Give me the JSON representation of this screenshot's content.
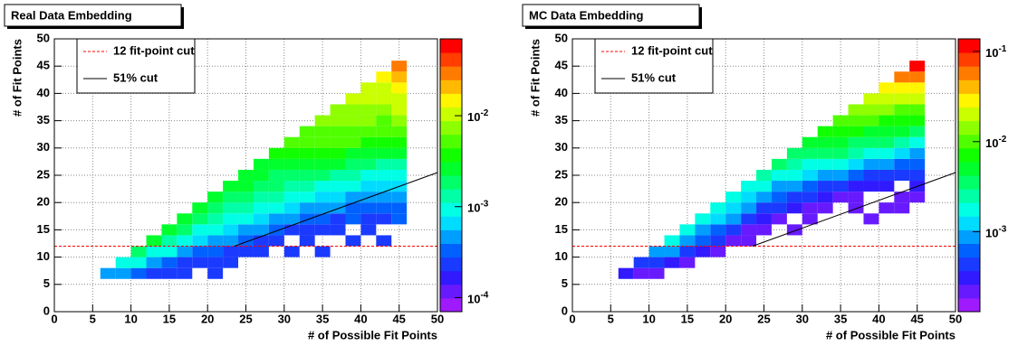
{
  "chart_data": [
    {
      "type": "heatmap",
      "title": "Real Data Embedding",
      "xlabel": "# of Possible Fit Points",
      "ylabel": "# of Fit Points",
      "xlim": [
        0,
        50
      ],
      "ylim": [
        0,
        50
      ],
      "xticks": [
        0,
        5,
        10,
        15,
        20,
        25,
        30,
        35,
        40,
        45,
        50
      ],
      "yticks": [
        0,
        5,
        10,
        15,
        20,
        25,
        30,
        35,
        40,
        45,
        50
      ],
      "grid": true,
      "xbins": [
        6,
        8,
        10,
        12,
        14,
        16,
        18,
        20,
        22,
        24,
        26,
        28,
        30,
        32,
        34,
        36,
        38,
        40,
        42,
        44,
        46
      ],
      "ybins": [
        6,
        8,
        10,
        12,
        14,
        16,
        18,
        20,
        22,
        24,
        26,
        28,
        30,
        32,
        34,
        36,
        38,
        40,
        42,
        44,
        46
      ],
      "z": [
        [
          0.0005
        ],
        [
          0.0004,
          0.001
        ],
        [
          0.0003,
          0.0008,
          0.002
        ],
        [
          0.0002,
          0.0005,
          0.001,
          0.003
        ],
        [
          0.0002,
          0.0003,
          0.0008,
          0.0015,
          0.003
        ],
        [
          0.0002,
          0.0002,
          0.0005,
          0.001,
          0.002,
          0.003
        ],
        [
          null,
          0.0002,
          0.0003,
          0.0006,
          0.001,
          0.002,
          0.003
        ],
        [
          0.0002,
          0.0002,
          0.0003,
          0.0005,
          0.0008,
          0.0015,
          0.002,
          0.003
        ],
        [
          null,
          0.0002,
          0.0002,
          0.0004,
          0.0006,
          0.001,
          0.0015,
          0.002,
          0.003
        ],
        [
          null,
          null,
          0.0002,
          0.0003,
          0.0005,
          0.0008,
          0.0012,
          0.0018,
          0.0025,
          0.003
        ],
        [
          null,
          null,
          0.0002,
          0.0002,
          0.0004,
          0.0006,
          0.001,
          0.0015,
          0.002,
          0.0025,
          0.003
        ],
        [
          null,
          null,
          null,
          0.0002,
          0.0003,
          0.0005,
          0.0008,
          0.0012,
          0.0018,
          0.0022,
          0.003,
          0.004
        ],
        [
          null,
          null,
          0.0002,
          null,
          0.0002,
          0.0004,
          0.0006,
          0.001,
          0.0015,
          0.002,
          0.003,
          0.004,
          0.005
        ],
        [
          null,
          null,
          null,
          0.0002,
          0.0002,
          0.0003,
          0.0005,
          0.0008,
          0.0012,
          0.002,
          0.003,
          0.004,
          0.005,
          0.006
        ],
        [
          null,
          null,
          0.0002,
          null,
          0.0002,
          0.0003,
          0.0004,
          0.0007,
          0.001,
          0.0018,
          0.0025,
          0.004,
          0.005,
          0.006,
          0.007
        ],
        [
          null,
          null,
          null,
          null,
          0.0002,
          0.0002,
          0.0004,
          0.0006,
          0.001,
          0.0015,
          0.0025,
          0.0035,
          0.005,
          0.006,
          0.007,
          0.008
        ],
        [
          null,
          null,
          null,
          0.0002,
          null,
          0.0003,
          0.0003,
          0.0005,
          0.0008,
          0.0012,
          0.002,
          0.003,
          0.0045,
          0.006,
          0.007,
          0.008,
          0.009
        ],
        [
          null,
          null,
          null,
          null,
          0.0002,
          0.0002,
          0.0003,
          0.0005,
          0.0007,
          0.001,
          0.0018,
          0.0028,
          0.004,
          0.0055,
          0.007,
          0.008,
          0.01,
          0.012
        ],
        [
          null,
          null,
          null,
          0.0002,
          null,
          0.0002,
          0.0003,
          0.0004,
          0.0006,
          0.001,
          0.0015,
          0.0025,
          0.004,
          0.005,
          0.006,
          0.008,
          0.01,
          0.012,
          0.015
        ],
        [
          null,
          null,
          null,
          null,
          null,
          0.0003,
          0.0003,
          0.0004,
          0.0006,
          0.001,
          0.0015,
          0.0025,
          0.004,
          0.006,
          0.008,
          0.01,
          0.012,
          0.015,
          0.02,
          0.025
        ]
      ],
      "zlim": [
        7e-05,
        0.07
      ],
      "zlog": true,
      "zticks": [
        {
          "value": 0.0001,
          "base": "10",
          "exp": "-4"
        },
        {
          "value": 0.001,
          "base": "10",
          "exp": "-3"
        },
        {
          "value": 0.01,
          "base": "10",
          "exp": "-2"
        }
      ],
      "lines": [
        {
          "name": "12 fit-point cut",
          "color": "#ff0000",
          "dashed": true,
          "x": [
            0,
            50
          ],
          "y": [
            12,
            12
          ]
        },
        {
          "name": "51% cut",
          "color": "#000000",
          "dashed": false,
          "x": [
            23.5,
            50
          ],
          "y": [
            12,
            25.5
          ]
        }
      ]
    },
    {
      "type": "heatmap",
      "title": "MC Data Embedding",
      "xlabel": "# of Possible Fit Points",
      "ylabel": "# of Fit Points",
      "xlim": [
        0,
        50
      ],
      "ylim": [
        0,
        50
      ],
      "xticks": [
        0,
        5,
        10,
        15,
        20,
        25,
        30,
        35,
        40,
        45,
        50
      ],
      "yticks": [
        0,
        5,
        10,
        15,
        20,
        25,
        30,
        35,
        40,
        45,
        50
      ],
      "grid": true,
      "xbins": [
        6,
        8,
        10,
        12,
        14,
        16,
        18,
        20,
        22,
        24,
        26,
        28,
        30,
        32,
        34,
        36,
        38,
        40,
        42,
        44,
        46
      ],
      "ybins": [
        6,
        8,
        10,
        12,
        14,
        16,
        18,
        20,
        22,
        24,
        26,
        28,
        30,
        32,
        34,
        36,
        38,
        40,
        42,
        44,
        46
      ],
      "z": [
        [
          0.0003
        ],
        [
          0.0002,
          0.0005
        ],
        [
          0.0002,
          0.0004,
          0.001
        ],
        [
          null,
          0.0003,
          0.0008,
          0.002
        ],
        [
          null,
          0.0002,
          0.0005,
          0.001,
          0.002
        ],
        [
          null,
          null,
          0.0003,
          0.0006,
          0.001,
          0.002
        ],
        [
          null,
          null,
          0.0002,
          0.0004,
          0.0007,
          0.0012,
          0.002
        ],
        [
          null,
          null,
          null,
          0.0002,
          0.0004,
          0.0008,
          0.0012,
          0.002
        ],
        [
          null,
          null,
          null,
          0.0002,
          0.0002,
          0.0005,
          0.0008,
          0.0012,
          0.002
        ],
        [
          null,
          null,
          null,
          null,
          0.0002,
          0.0003,
          0.0005,
          0.0008,
          0.0015,
          0.0025
        ],
        [
          null,
          null,
          null,
          null,
          null,
          0.0002,
          0.0004,
          0.0006,
          0.001,
          0.0018,
          0.003
        ],
        [
          null,
          null,
          null,
          null,
          0.0002,
          null,
          0.0003,
          0.0005,
          0.0008,
          0.0015,
          0.0025,
          0.004
        ],
        [
          null,
          null,
          null,
          null,
          null,
          0.0002,
          0.0002,
          0.0004,
          0.0007,
          0.0012,
          0.002,
          0.0035,
          0.005
        ],
        [
          null,
          null,
          null,
          null,
          null,
          null,
          0.0002,
          0.0003,
          0.0005,
          0.001,
          0.002,
          0.003,
          0.005,
          0.007
        ],
        [
          null,
          null,
          null,
          null,
          null,
          null,
          null,
          0.0002,
          0.0004,
          0.0008,
          0.0015,
          0.003,
          0.005,
          0.007,
          0.01
        ],
        [
          null,
          null,
          null,
          null,
          null,
          null,
          0.0002,
          0.0002,
          0.0003,
          0.0006,
          0.0012,
          0.0025,
          0.004,
          0.007,
          0.01,
          0.013
        ],
        [
          null,
          null,
          null,
          null,
          null,
          0.0002,
          null,
          null,
          0.0003,
          0.0005,
          0.001,
          0.002,
          0.004,
          0.006,
          0.01,
          0.015,
          0.02
        ],
        [
          null,
          null,
          null,
          null,
          null,
          null,
          0.0002,
          null,
          0.0003,
          0.0004,
          0.0008,
          0.0015,
          0.003,
          0.005,
          0.008,
          0.015,
          0.02,
          0.03
        ],
        [
          null,
          null,
          null,
          null,
          null,
          null,
          0.0002,
          0.0002,
          null,
          0.0004,
          0.0007,
          0.0012,
          0.0025,
          0.005,
          0.008,
          0.012,
          0.02,
          0.03,
          0.05
        ],
        [
          null,
          null,
          null,
          null,
          null,
          null,
          null,
          0.0002,
          0.0003,
          0.0004,
          0.0006,
          0.001,
          0.002,
          0.004,
          0.007,
          0.012,
          0.02,
          0.03,
          0.05,
          0.1
        ]
      ],
      "zlim": [
        0.00013,
        0.138
      ],
      "zlog": true,
      "zticks": [
        {
          "value": 0.001,
          "base": "10",
          "exp": "-3"
        },
        {
          "value": 0.01,
          "base": "10",
          "exp": "-2"
        },
        {
          "value": 0.1,
          "base": "10",
          "exp": "-1"
        }
      ],
      "lines": [
        {
          "name": "12 fit-point cut",
          "color": "#ff0000",
          "dashed": true,
          "x": [
            0,
            50
          ],
          "y": [
            12,
            12
          ]
        },
        {
          "name": "51% cut",
          "color": "#000000",
          "dashed": false,
          "x": [
            23.5,
            50
          ],
          "y": [
            12,
            25.5
          ]
        }
      ]
    }
  ]
}
